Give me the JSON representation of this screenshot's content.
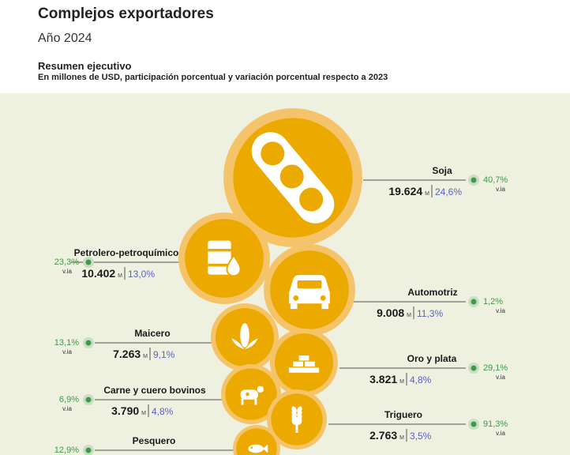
{
  "header": {
    "title": "Complejos exportadores",
    "year": "Año 2024",
    "section_title": "Resumen ejecutivo",
    "subtitle": "En millones de USD, participación porcentual y variación porcentual respecto a 2023"
  },
  "colors": {
    "background_panel": "#eef0e0",
    "bubble_outer": "#f5c46a",
    "bubble_inner": "#ecaa00",
    "value_text": "#1a1a1a",
    "share_text": "#5a5fc4",
    "variation_text": "#3f9a4a",
    "leader_line": "#555555"
  },
  "chart_data": {
    "type": "bubble",
    "value_unit": "M",
    "variation_unit": "v.ia",
    "items": [
      {
        "name": "Soja",
        "value": 19624,
        "value_label": "19.624",
        "share": 24.6,
        "share_label": "24,6%",
        "variation": 40.7,
        "variation_label": "40,7%",
        "side": "right",
        "icon": "soy-pod-icon"
      },
      {
        "name": "Petrolero-petroquímico",
        "value": 10402,
        "value_label": "10.402",
        "share": 13.0,
        "share_label": "13,0%",
        "variation": 23.3,
        "variation_label": "23,3%",
        "side": "left",
        "icon": "oil-barrel-icon"
      },
      {
        "name": "Automotriz",
        "value": 9008,
        "value_label": "9.008",
        "share": 11.3,
        "share_label": "11,3%",
        "variation": 1.2,
        "variation_label": "1,2%",
        "side": "right",
        "icon": "car-icon"
      },
      {
        "name": "Maicero",
        "value": 7263,
        "value_label": "7.263",
        "share": 9.1,
        "share_label": "9,1%",
        "variation": 13.1,
        "variation_label": "13,1%",
        "side": "left",
        "icon": "corn-icon"
      },
      {
        "name": "Oro y plata",
        "value": 3821,
        "value_label": "3.821",
        "share": 4.8,
        "share_label": "4,8%",
        "variation": 29.1,
        "variation_label": "29,1%",
        "side": "right",
        "icon": "gold-bars-icon"
      },
      {
        "name": "Carne y cuero bovinos",
        "value": 3790,
        "value_label": "3.790",
        "share": 4.8,
        "share_label": "4,8%",
        "variation": 6.9,
        "variation_label": "6,9%",
        "side": "left",
        "icon": "cow-icon"
      },
      {
        "name": "Triguero",
        "value": 2763,
        "value_label": "2.763",
        "share": 3.5,
        "share_label": "3,5%",
        "variation": 91.3,
        "variation_label": "91,3%",
        "side": "right",
        "icon": "wheat-icon"
      },
      {
        "name": "Pesquero",
        "value": null,
        "value_label": "",
        "share": null,
        "share_label": "",
        "variation": 12.9,
        "variation_label": "12,9%",
        "side": "left",
        "icon": "fish-icon"
      }
    ]
  }
}
